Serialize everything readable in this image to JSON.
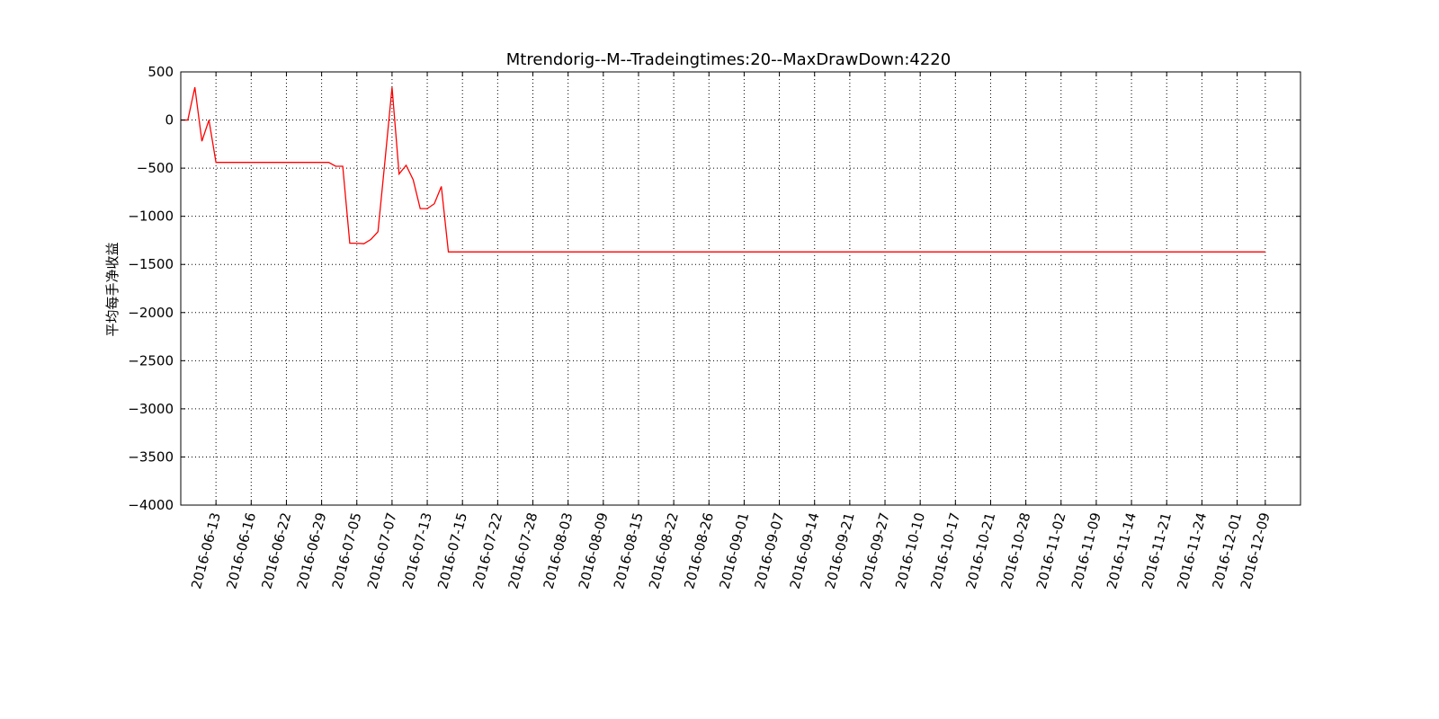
{
  "chart_data": {
    "type": "line",
    "title": "Mtrendorig--M--Tradeingtimes:20--MaxDrawDown:4220",
    "xlabel": "",
    "ylabel": "平均每手净收益",
    "ylim": [
      -4000,
      500
    ],
    "yticks": [
      500,
      0,
      -500,
      -1000,
      -1500,
      -2000,
      -2500,
      -3000,
      -3500,
      -4000
    ],
    "ytick_labels": [
      "500",
      "0",
      "−500",
      "−1000",
      "−1500",
      "−2000",
      "−2500",
      "−3000",
      "−3500",
      "−4000"
    ],
    "xlim": [
      0,
      159
    ],
    "xticks": [
      {
        "pos": 5,
        "label": "2016-06-13"
      },
      {
        "pos": 10,
        "label": "2016-06-16"
      },
      {
        "pos": 15,
        "label": "2016-06-22"
      },
      {
        "pos": 20,
        "label": "2016-06-29"
      },
      {
        "pos": 25,
        "label": "2016-07-05"
      },
      {
        "pos": 30,
        "label": "2016-07-07"
      },
      {
        "pos": 35,
        "label": "2016-07-13"
      },
      {
        "pos": 40,
        "label": "2016-07-15"
      },
      {
        "pos": 45,
        "label": "2016-07-22"
      },
      {
        "pos": 50,
        "label": "2016-07-28"
      },
      {
        "pos": 55,
        "label": "2016-08-03"
      },
      {
        "pos": 60,
        "label": "2016-08-09"
      },
      {
        "pos": 65,
        "label": "2016-08-15"
      },
      {
        "pos": 70,
        "label": "2016-08-22"
      },
      {
        "pos": 75,
        "label": "2016-08-26"
      },
      {
        "pos": 80,
        "label": "2016-09-01"
      },
      {
        "pos": 85,
        "label": "2016-09-07"
      },
      {
        "pos": 90,
        "label": "2016-09-14"
      },
      {
        "pos": 95,
        "label": "2016-09-21"
      },
      {
        "pos": 100,
        "label": "2016-09-27"
      },
      {
        "pos": 105,
        "label": "2016-10-10"
      },
      {
        "pos": 110,
        "label": "2016-10-17"
      },
      {
        "pos": 115,
        "label": "2016-10-21"
      },
      {
        "pos": 120,
        "label": "2016-10-28"
      },
      {
        "pos": 125,
        "label": "2016-11-02"
      },
      {
        "pos": 130,
        "label": "2016-11-09"
      },
      {
        "pos": 135,
        "label": "2016-11-14"
      },
      {
        "pos": 140,
        "label": "2016-11-21"
      },
      {
        "pos": 145,
        "label": "2016-11-24"
      },
      {
        "pos": 150,
        "label": "2016-12-01"
      },
      {
        "pos": 154,
        "label": "2016-12-09"
      }
    ],
    "grid": true,
    "series": [
      {
        "color": "#ff0000",
        "x": [
          0,
          1,
          2,
          3,
          4,
          5,
          6,
          7,
          8,
          9,
          10,
          11,
          12,
          13,
          14,
          15,
          16,
          17,
          18,
          19,
          20,
          21,
          22,
          23,
          24,
          25,
          26,
          27,
          28,
          29,
          30,
          31,
          32,
          33,
          34,
          35,
          36,
          37,
          38,
          39,
          40,
          41,
          42,
          43,
          44,
          45,
          46,
          47,
          48,
          49,
          50,
          51,
          52,
          53,
          54,
          55,
          56,
          57,
          58,
          59,
          60,
          61,
          62,
          63,
          64,
          65,
          66,
          67,
          68,
          69,
          70,
          71,
          72,
          73,
          74,
          75,
          76,
          77,
          78,
          79,
          80,
          81,
          82,
          83,
          84,
          85,
          86,
          87,
          88,
          89,
          90,
          91,
          92,
          93,
          94,
          95,
          96,
          97,
          98,
          99,
          100,
          101,
          102,
          103,
          104,
          105,
          106,
          107,
          108,
          109,
          110,
          111,
          112,
          113,
          114,
          115,
          116,
          117,
          118,
          119,
          120,
          121,
          122,
          123,
          124,
          125,
          126,
          127,
          128,
          129,
          130,
          131,
          132,
          133,
          134,
          135,
          136,
          137,
          138,
          139,
          140,
          141,
          142,
          143,
          144,
          145,
          146,
          147,
          148,
          149,
          150,
          151,
          152,
          153,
          154
        ],
        "values": [
          0,
          0,
          340,
          -220,
          0,
          -440,
          -440,
          -440,
          -440,
          -440,
          -440,
          -440,
          -440,
          -440,
          -440,
          -440,
          -440,
          -440,
          -440,
          -440,
          -440,
          -440,
          -480,
          -480,
          -1280,
          -1280,
          -1285,
          -1240,
          -1160,
          -420,
          340,
          -560,
          -470,
          -620,
          -920,
          -920,
          -870,
          -690,
          -1370,
          -1370,
          -1370,
          -1370,
          -1370,
          -1370,
          -1370,
          -1370,
          -1370,
          -1370,
          -1370,
          -1370,
          -1370,
          -1370,
          -1370,
          -1370,
          -1370,
          -1370,
          -1370,
          -1370,
          -1370,
          -1370,
          -1370,
          -1370,
          -1370,
          -1370,
          -1370,
          -1370,
          -1370,
          -1370,
          -1370,
          -1370,
          -1370,
          -1370,
          -1370,
          -1370,
          -1370,
          -1370,
          -1370,
          -1370,
          -1370,
          -1370,
          -1370,
          -1370,
          -1370,
          -1370,
          -1370,
          -1370,
          -1370,
          -1370,
          -1370,
          -1370,
          -1370,
          -1370,
          -1370,
          -1370,
          -1370,
          -1370,
          -1370,
          -1370,
          -1370,
          -1370,
          -1370,
          -1370,
          -1370,
          -1370,
          -1370,
          -1370,
          -1370,
          -1370,
          -1370,
          -1370,
          -1370,
          -1370,
          -1370,
          -1370,
          -1370,
          -1370,
          -1370,
          -1370,
          -1370,
          -1370,
          -1370,
          -1370,
          -1370,
          -1370,
          -1370,
          -1370,
          -1370,
          -1370,
          -1370,
          -1370,
          -1370,
          -1370,
          -1370,
          -1370,
          -1370,
          -1370,
          -1370,
          -1370,
          -1370,
          -1370,
          -1370,
          -1370,
          -1370,
          -1370,
          -1370,
          -1370,
          -1370,
          -1370,
          -1370,
          -1370,
          -1370,
          -1370,
          -1370,
          -1370,
          -1370
        ]
      }
    ]
  }
}
